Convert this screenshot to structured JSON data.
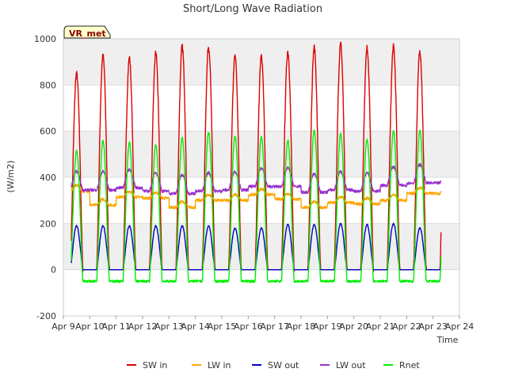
{
  "chart_data": {
    "type": "line",
    "title": "Short/Long Wave Radiation",
    "xlabel": "Time",
    "ylabel": "(W/m2)",
    "site_label": "VR_met",
    "ylim": [
      -200,
      1000
    ],
    "xlim": [
      9,
      24
    ],
    "y_ticks": [
      -200,
      0,
      200,
      400,
      600,
      800,
      1000
    ],
    "x_ticks": [
      {
        "v": 9,
        "label": "Apr 9"
      },
      {
        "v": 10,
        "label": "Apr 10"
      },
      {
        "v": 11,
        "label": "Apr 11"
      },
      {
        "v": 12,
        "label": "Apr 12"
      },
      {
        "v": 13,
        "label": "Apr 13"
      },
      {
        "v": 14,
        "label": "Apr 14"
      },
      {
        "v": 15,
        "label": "Apr 15"
      },
      {
        "v": 16,
        "label": "Apr 16"
      },
      {
        "v": 17,
        "label": "Apr 17"
      },
      {
        "v": 18,
        "label": "Apr 18"
      },
      {
        "v": 19,
        "label": "Apr 19"
      },
      {
        "v": 20,
        "label": "Apr 20"
      },
      {
        "v": 21,
        "label": "Apr 21"
      },
      {
        "v": 22,
        "label": "Apr 22"
      },
      {
        "v": 23,
        "label": "Apr 23"
      },
      {
        "v": 24,
        "label": "Apr 24"
      }
    ],
    "x_unit": "day of April (fractional)",
    "data_range": [
      9.3,
      23.3
    ],
    "colors": {
      "band": "#efefef",
      "grid": "#dcdcdc",
      "frame": "#cccccc"
    },
    "series": [
      {
        "name": "SW in",
        "color": "#dd0000",
        "kind": "solar",
        "daily_peaks": [
          850,
          925,
          915,
          940,
          965,
          968,
          925,
          925,
          945,
          962,
          975,
          962,
          965,
          945
        ],
        "night_value": 0
      },
      {
        "name": "LW in",
        "color": "#ffa500",
        "kind": "longwave",
        "daily_levels": [
          340,
          280,
          315,
          310,
          270,
          300,
          300,
          325,
          305,
          270,
          290,
          285,
          300,
          330
        ],
        "diurnal_amp": 25
      },
      {
        "name": "SW out",
        "color": "#0000cc",
        "kind": "solar",
        "daily_peaks": [
          190,
          190,
          190,
          190,
          190,
          190,
          180,
          180,
          195,
          195,
          200,
          195,
          200,
          180
        ],
        "night_value": 0
      },
      {
        "name": "LW out",
        "color": "#9932cc",
        "kind": "longwave",
        "daily_levels": [
          345,
          345,
          355,
          340,
          330,
          340,
          345,
          360,
          360,
          335,
          345,
          340,
          365,
          375
        ],
        "diurnal_amp": 80
      },
      {
        "name": "Rnet",
        "color": "#00ee00",
        "kind": "net",
        "daily_peaks": [
          515,
          560,
          550,
          540,
          570,
          595,
          580,
          575,
          560,
          605,
          590,
          565,
          600,
          600
        ],
        "night_value": -50
      }
    ]
  }
}
